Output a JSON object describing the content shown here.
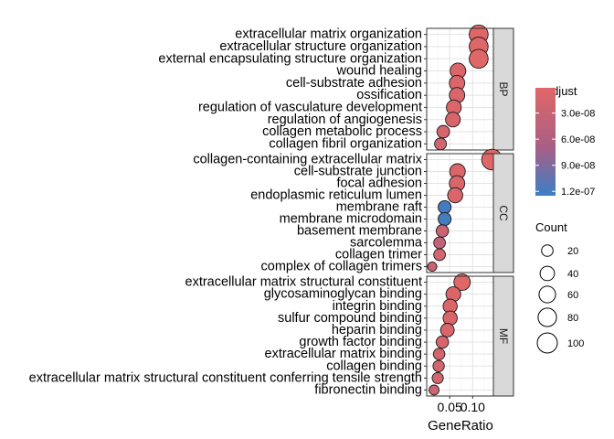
{
  "chart_data": {
    "type": "scatter",
    "xlabel": "GeneRatio",
    "x_ticks": [
      0.05,
      0.1
    ],
    "x_tick_labels": [
      "0.05",
      "0.10"
    ],
    "xlim": [
      0.0,
      0.145
    ],
    "size_legend": {
      "title": "Count",
      "values": [
        20,
        40,
        60,
        80,
        100
      ]
    },
    "color_legend": {
      "title": "p.adjust",
      "range": [
        1e-09,
        1.25e-07
      ],
      "low_color": "#e06767",
      "high_color": "#3a7fc6",
      "ticks": [
        3e-08,
        6e-08,
        9e-08,
        1.2e-07
      ],
      "tick_labels": [
        "3.0e-08",
        "6.0e-08",
        "9.0e-08",
        "1.2e-07"
      ]
    },
    "panels": [
      {
        "label": "BP",
        "terms": [
          {
            "term": "extracellular matrix organization",
            "gene_ratio": 0.113,
            "count": 85,
            "p_adjust": 2e-09
          },
          {
            "term": "extracellular structure organization",
            "gene_ratio": 0.113,
            "count": 85,
            "p_adjust": 2e-09
          },
          {
            "term": "external encapsulating structure organization",
            "gene_ratio": 0.113,
            "count": 85,
            "p_adjust": 2e-09
          },
          {
            "term": "wound healing",
            "gene_ratio": 0.068,
            "count": 51,
            "p_adjust": 8e-09
          },
          {
            "term": "cell-substrate adhesion",
            "gene_ratio": 0.066,
            "count": 49,
            "p_adjust": 8e-09
          },
          {
            "term": "ossification",
            "gene_ratio": 0.066,
            "count": 49,
            "p_adjust": 1e-08
          },
          {
            "term": "regulation of vasculature development",
            "gene_ratio": 0.059,
            "count": 44,
            "p_adjust": 1e-08
          },
          {
            "term": "regulation of angiogenesis",
            "gene_ratio": 0.057,
            "count": 43,
            "p_adjust": 1.2e-08
          },
          {
            "term": "collagen metabolic process",
            "gene_ratio": 0.036,
            "count": 27,
            "p_adjust": 1.5e-08
          },
          {
            "term": "collagen fibril organization",
            "gene_ratio": 0.03,
            "count": 22,
            "p_adjust": 2e-08
          }
        ]
      },
      {
        "label": "CC",
        "terms": [
          {
            "term": "collagen-containing extracellular matrix",
            "gene_ratio": 0.142,
            "count": 107,
            "p_adjust": 1e-09
          },
          {
            "term": "cell-substrate junction",
            "gene_ratio": 0.067,
            "count": 50,
            "p_adjust": 8e-09
          },
          {
            "term": "focal adhesion",
            "gene_ratio": 0.066,
            "count": 49,
            "p_adjust": 8e-09
          },
          {
            "term": "endoplasmic reticulum lumen",
            "gene_ratio": 0.062,
            "count": 46,
            "p_adjust": 1e-08
          },
          {
            "term": "membrane raft",
            "gene_ratio": 0.039,
            "count": 29,
            "p_adjust": 1.2e-07
          },
          {
            "term": "membrane microdomain",
            "gene_ratio": 0.039,
            "count": 29,
            "p_adjust": 1.2e-07
          },
          {
            "term": "basement membrane",
            "gene_ratio": 0.034,
            "count": 25,
            "p_adjust": 3e-08
          },
          {
            "term": "sarcolemma",
            "gene_ratio": 0.028,
            "count": 21,
            "p_adjust": 4e-08
          },
          {
            "term": "collagen trimer",
            "gene_ratio": 0.028,
            "count": 21,
            "p_adjust": 2e-08
          },
          {
            "term": "complex of collagen trimers",
            "gene_ratio": 0.012,
            "count": 9,
            "p_adjust": 3e-08
          }
        ]
      },
      {
        "label": "MF",
        "terms": [
          {
            "term": "extracellular matrix structural constituent",
            "gene_ratio": 0.077,
            "count": 58,
            "p_adjust": 2e-09
          },
          {
            "term": "glycosaminoglycan binding",
            "gene_ratio": 0.058,
            "count": 43,
            "p_adjust": 8e-09
          },
          {
            "term": "integrin binding",
            "gene_ratio": 0.051,
            "count": 38,
            "p_adjust": 8e-09
          },
          {
            "term": "sulfur compound binding",
            "gene_ratio": 0.051,
            "count": 38,
            "p_adjust": 1e-08
          },
          {
            "term": "heparin binding",
            "gene_ratio": 0.045,
            "count": 34,
            "p_adjust": 1e-08
          },
          {
            "term": "growth factor binding",
            "gene_ratio": 0.034,
            "count": 25,
            "p_adjust": 1.2e-08
          },
          {
            "term": "extracellular matrix binding",
            "gene_ratio": 0.027,
            "count": 20,
            "p_adjust": 1.5e-08
          },
          {
            "term": "collagen binding",
            "gene_ratio": 0.026,
            "count": 19,
            "p_adjust": 2e-08
          },
          {
            "term": "extracellular matrix structural constituent conferring tensile strength",
            "gene_ratio": 0.024,
            "count": 18,
            "p_adjust": 2e-08
          },
          {
            "term": "fibronectin binding",
            "gene_ratio": 0.016,
            "count": 12,
            "p_adjust": 2.5e-08
          }
        ]
      }
    ]
  }
}
